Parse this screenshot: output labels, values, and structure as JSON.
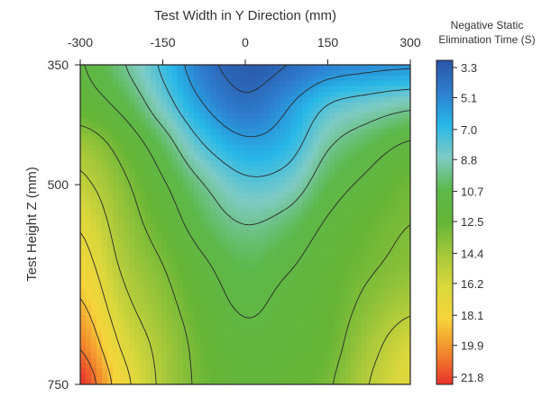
{
  "chart_data": {
    "type": "heatmap",
    "title": "",
    "xlabel": "Test Width in Y Direction (mm)",
    "ylabel": "Test Height  Z (mm)",
    "x_ticks": [
      "-300",
      "-150",
      "0",
      "150",
      "300"
    ],
    "x_tick_values": [
      -300,
      -150,
      0,
      150,
      300
    ],
    "y_ticks": [
      "350",
      "500",
      "750"
    ],
    "y_tick_values": [
      350,
      500,
      750
    ],
    "xlim": [
      -300,
      300
    ],
    "ylim": [
      350,
      750
    ],
    "x_axis_position": "top",
    "y_axis_inverted": true,
    "grid": false,
    "colorbar": {
      "title_lines": [
        "Negative Static",
        "Elimination Time (S)"
      ],
      "ticks": [
        "3.3",
        "5.1",
        "7.0",
        "8.8",
        "10.7",
        "12.5",
        "14.4",
        "16.2",
        "18.1",
        "19.9",
        "21.8"
      ],
      "values": [
        3.3,
        5.1,
        7.0,
        8.8,
        10.7,
        12.5,
        14.4,
        16.2,
        18.1,
        19.9,
        21.8
      ],
      "range": [
        3.3,
        21.8
      ],
      "placement": "right",
      "colors": [
        "#2b55a6",
        "#2e7fd0",
        "#27b8e8",
        "#7fcbc4",
        "#5db84a",
        "#66b537",
        "#a6c83a",
        "#dcd83c",
        "#f6d43a",
        "#f28a2c",
        "#e8312a"
      ]
    },
    "contour_levels": [
      4.2,
      6.0,
      7.8,
      9.6,
      11.4,
      13.2,
      15.0,
      16.8,
      18.6,
      20.4
    ],
    "grid_values": {
      "x": [
        -300,
        -225,
        -150,
        -75,
        0,
        75,
        150,
        225,
        300
      ],
      "y": [
        350,
        400,
        450,
        500,
        550,
        600,
        650,
        700,
        750
      ],
      "z": [
        [
          11.5,
          9.8,
          7.5,
          4.8,
          3.6,
          4.2,
          5.2,
          5.6,
          5.8
        ],
        [
          12.2,
          11.0,
          8.6,
          6.0,
          4.6,
          5.8,
          7.8,
          8.6,
          9.2
        ],
        [
          14.2,
          12.6,
          10.4,
          7.8,
          6.4,
          7.0,
          9.4,
          10.6,
          11.6
        ],
        [
          15.4,
          13.6,
          11.6,
          9.6,
          8.2,
          8.6,
          10.6,
          11.8,
          12.8
        ],
        [
          16.6,
          14.2,
          12.4,
          10.6,
          9.6,
          10.2,
          11.6,
          12.6,
          13.2
        ],
        [
          17.6,
          14.8,
          13.2,
          11.6,
          10.6,
          11.2,
          12.2,
          13.0,
          13.6
        ],
        [
          18.8,
          15.6,
          13.8,
          12.2,
          11.2,
          11.8,
          12.4,
          13.6,
          14.6
        ],
        [
          20.2,
          16.6,
          14.4,
          12.6,
          11.8,
          12.0,
          12.6,
          14.4,
          16.0
        ],
        [
          21.8,
          17.6,
          14.6,
          12.8,
          12.2,
          12.4,
          13.0,
          15.0,
          16.6
        ]
      ]
    }
  }
}
